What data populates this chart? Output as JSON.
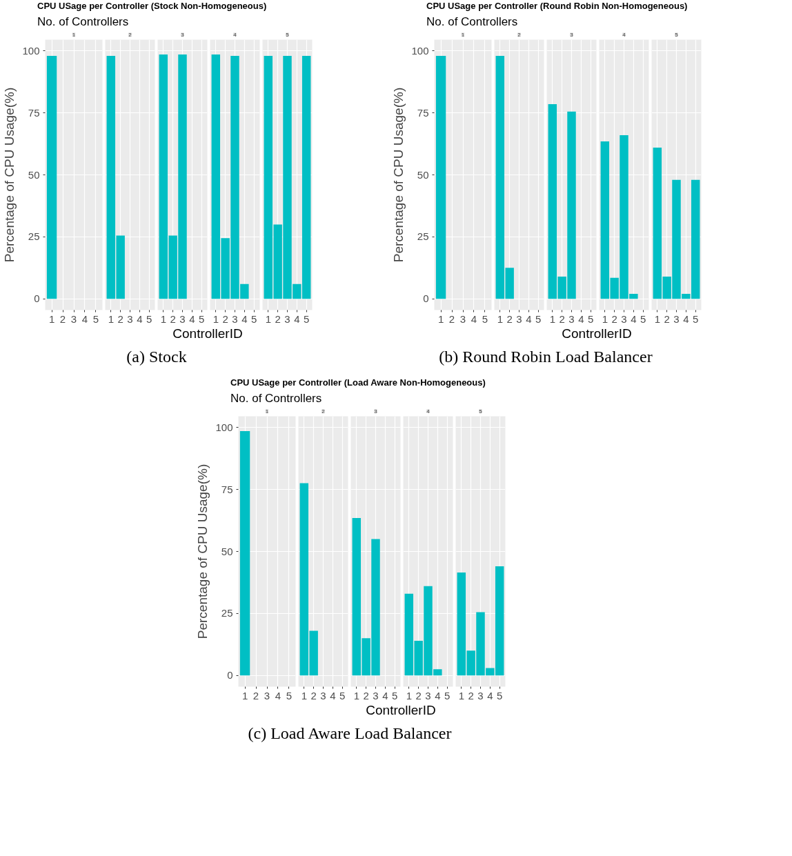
{
  "chart_data": [
    {
      "type": "bar",
      "title": "1",
      "annotations": [
        "CPU USage per Controller (Stock Non-Homogeneous)",
        "No. of Controllers"
      ],
      "ylabel": "Percentage of CPU Usage(%)",
      "categories": [
        "1",
        "2",
        "3",
        "4",
        "5"
      ],
      "values": [
        98,
        null,
        null,
        null,
        null
      ],
      "color": "#00bfc4",
      "ylim": [
        -4.5,
        104.5
      ],
      "yticks": [
        0,
        25,
        50,
        75,
        100
      ],
      "grid": true
    },
    {
      "type": "bar",
      "title": "2",
      "categories": [
        "1",
        "2",
        "3",
        "4",
        "5"
      ],
      "values": [
        98,
        25.5,
        null,
        null,
        null
      ],
      "color": "#00bfc4",
      "ylim": [
        -4.5,
        104.5
      ],
      "yticks": [
        0,
        25,
        50,
        75,
        100
      ],
      "grid": true,
      "tick_labels": "x"
    },
    {
      "type": "bar",
      "title": "3",
      "xlabel": "ControllerID",
      "annotations": [
        "(a) Stock"
      ],
      "categories": [
        "1",
        "2",
        "3",
        "4",
        "5"
      ],
      "values": [
        98.5,
        25.5,
        98.5,
        null,
        null
      ],
      "color": "#00bfc4",
      "ylim": [
        -4.5,
        104.5
      ],
      "yticks": [
        0,
        25,
        50,
        75,
        100
      ],
      "grid": true,
      "tick_labels": "x"
    },
    {
      "type": "bar",
      "title": "4",
      "categories": [
        "1",
        "2",
        "3",
        "4",
        "5"
      ],
      "values": [
        98.5,
        24.5,
        98,
        6,
        null
      ],
      "color": "#00bfc4",
      "ylim": [
        -4.5,
        104.5
      ],
      "yticks": [
        0,
        25,
        50,
        75,
        100
      ],
      "grid": true,
      "tick_labels": "x"
    },
    {
      "type": "bar",
      "title": "5",
      "categories": [
        "1",
        "2",
        "3",
        "4",
        "5"
      ],
      "values": [
        98,
        30,
        98,
        6,
        98
      ],
      "color": "#00bfc4",
      "ylim": [
        -4.5,
        104.5
      ],
      "yticks": [
        0,
        25,
        50,
        75,
        100
      ],
      "grid": true,
      "tick_labels": "x"
    },
    {
      "type": "bar",
      "title": "1",
      "annotations": [
        "CPU USage per Controller (Round Robin Non-Homogeneous)",
        "No. of Controllers"
      ],
      "ylabel": "Percentage of CPU Usage(%)",
      "categories": [
        "1",
        "2",
        "3",
        "4",
        "5"
      ],
      "values": [
        98,
        null,
        null,
        null,
        null
      ],
      "color": "#00bfc4",
      "ylim": [
        -4.5,
        104.5
      ],
      "yticks": [
        0,
        25,
        50,
        75,
        100
      ],
      "grid": true
    },
    {
      "type": "bar",
      "title": "2",
      "categories": [
        "1",
        "2",
        "3",
        "4",
        "5"
      ],
      "values": [
        98,
        12.5,
        null,
        null,
        null
      ],
      "color": "#00bfc4",
      "ylim": [
        -4.5,
        104.5
      ],
      "yticks": [
        0,
        25,
        50,
        75,
        100
      ],
      "grid": true,
      "tick_labels": "x"
    },
    {
      "type": "bar",
      "title": "3",
      "xlabel": "ControllerID",
      "annotations": [
        "(b) Round Robin Load Balancer"
      ],
      "categories": [
        "1",
        "2",
        "3",
        "4",
        "5"
      ],
      "values": [
        78.5,
        9,
        75.5,
        null,
        null
      ],
      "color": "#00bfc4",
      "ylim": [
        -4.5,
        104.5
      ],
      "yticks": [
        0,
        25,
        50,
        75,
        100
      ],
      "grid": true,
      "tick_labels": "x"
    },
    {
      "type": "bar",
      "title": "4",
      "categories": [
        "1",
        "2",
        "3",
        "4",
        "5"
      ],
      "values": [
        63.5,
        8.5,
        66,
        2,
        null
      ],
      "color": "#00bfc4",
      "ylim": [
        -4.5,
        104.5
      ],
      "yticks": [
        0,
        25,
        50,
        75,
        100
      ],
      "grid": true,
      "tick_labels": "x"
    },
    {
      "type": "bar",
      "title": "5",
      "categories": [
        "1",
        "2",
        "3",
        "4",
        "5"
      ],
      "values": [
        61,
        9,
        48,
        2,
        48
      ],
      "color": "#00bfc4",
      "ylim": [
        -4.5,
        104.5
      ],
      "yticks": [
        0,
        25,
        50,
        75,
        100
      ],
      "grid": true,
      "tick_labels": "x"
    },
    {
      "type": "bar",
      "title": "1",
      "annotations": [
        "CPU USage per Controller (Load Aware Non-Homogeneous)",
        "No. of Controllers"
      ],
      "ylabel": "Percentage of CPU Usage(%)",
      "categories": [
        "1",
        "2",
        "3",
        "4",
        "5"
      ],
      "values": [
        98.5,
        null,
        null,
        null,
        null
      ],
      "color": "#00bfc4",
      "ylim": [
        -4.5,
        104.5
      ],
      "yticks": [
        0,
        25,
        50,
        75,
        100
      ],
      "grid": true
    },
    {
      "type": "bar",
      "title": "2",
      "categories": [
        "1",
        "2",
        "3",
        "4",
        "5"
      ],
      "values": [
        77.5,
        18,
        null,
        null,
        null
      ],
      "color": "#00bfc4",
      "ylim": [
        -4.5,
        104.5
      ],
      "yticks": [
        0,
        25,
        50,
        75,
        100
      ],
      "grid": true,
      "tick_labels": "x"
    },
    {
      "type": "bar",
      "title": "3",
      "xlabel": "ControllerID",
      "annotations": [
        "(c) Load Aware Load Balancer"
      ],
      "categories": [
        "1",
        "2",
        "3",
        "4",
        "5"
      ],
      "values": [
        63.5,
        15,
        55,
        null,
        null
      ],
      "color": "#00bfc4",
      "ylim": [
        -4.5,
        104.5
      ],
      "yticks": [
        0,
        25,
        50,
        75,
        100
      ],
      "grid": true,
      "tick_labels": "x"
    },
    {
      "type": "bar",
      "title": "4",
      "categories": [
        "1",
        "2",
        "3",
        "4",
        "5"
      ],
      "values": [
        33,
        14,
        36,
        2.5,
        null
      ],
      "color": "#00bfc4",
      "ylim": [
        -4.5,
        104.5
      ],
      "yticks": [
        0,
        25,
        50,
        75,
        100
      ],
      "grid": true,
      "tick_labels": "x"
    },
    {
      "type": "bar",
      "title": "5",
      "categories": [
        "1",
        "2",
        "3",
        "4",
        "5"
      ],
      "values": [
        41.5,
        10,
        25.5,
        3,
        44
      ],
      "color": "#00bfc4",
      "ylim": [
        -4.5,
        104.5
      ],
      "yticks": [
        0,
        25,
        50,
        75,
        100
      ],
      "grid": true,
      "tick_labels": "x"
    }
  ]
}
